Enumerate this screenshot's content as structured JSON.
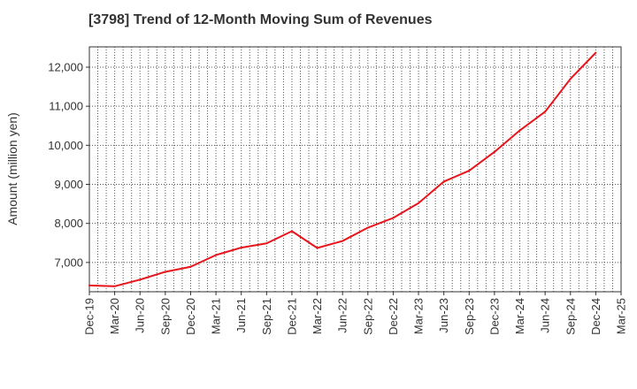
{
  "chart_data": {
    "type": "line",
    "title": "[3798]  Trend of 12-Month Moving Sum of Revenues",
    "xlabel": "",
    "ylabel": "Amount (million yen)",
    "x_tick_labels": [
      "Dec-19",
      "Mar-20",
      "Jun-20",
      "Sep-20",
      "Dec-20",
      "Mar-21",
      "Jun-21",
      "Sep-21",
      "Dec-21",
      "Mar-22",
      "Jun-22",
      "Sep-22",
      "Dec-22",
      "Mar-23",
      "Jun-23",
      "Sep-23",
      "Dec-23",
      "Mar-24",
      "Jun-24",
      "Sep-24",
      "Dec-24",
      "Mar-25"
    ],
    "y_ticks": [
      7000,
      8000,
      9000,
      10000,
      11000,
      12000
    ],
    "y_tick_labels": [
      "7,000",
      "8,000",
      "9,000",
      "10,000",
      "11,000",
      "12,000"
    ],
    "ylim": [
      6250,
      12520
    ],
    "grid": true,
    "series": [
      {
        "color": "#e8141b",
        "x": [
          "Dec-19",
          "Mar-20",
          "Jun-20",
          "Sep-20",
          "Dec-20",
          "Mar-21",
          "Jun-21",
          "Sep-21",
          "Dec-21",
          "Mar-22",
          "Jun-22",
          "Sep-22",
          "Dec-22",
          "Mar-23",
          "Jun-23",
          "Sep-23",
          "Dec-23",
          "Mar-24",
          "Jun-24",
          "Sep-24",
          "Dec-24"
        ],
        "values": [
          6410,
          6390,
          6560,
          6760,
          6890,
          7190,
          7380,
          7490,
          7800,
          7370,
          7550,
          7890,
          8140,
          8520,
          9070,
          9350,
          9830,
          10380,
          10860,
          11700,
          12370
        ]
      }
    ]
  }
}
